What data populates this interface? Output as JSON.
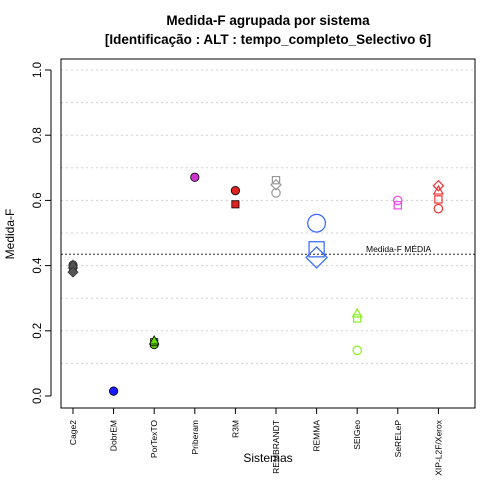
{
  "chart_data": {
    "type": "scatter",
    "title": "Medida-F agrupada por sistema",
    "subtitle": "[Identificação : ALT : tempo_completo_Selectivo 6]",
    "xlabel": "Sistemas",
    "ylabel": "Medida-F",
    "ylim": [
      0.0,
      1.0
    ],
    "yticks": [
      "0.0",
      "0.2",
      "0.4",
      "0.6",
      "0.8",
      "1.0"
    ],
    "grid": true,
    "categories": [
      "Cage2",
      "DobrEM",
      "PorTexTO",
      "Priberam",
      "R3M",
      "REMBRANDT",
      "REMMA",
      "SEIGeo",
      "SeRELeP",
      "XIP-L2F/Xerox"
    ],
    "reference_line": {
      "label": "Medida-F MÉDIA",
      "value": 0.435
    },
    "series": [
      {
        "category": "Cage2",
        "color": "#555555",
        "points": [
          {
            "y": 0.402,
            "marker": "circle-filled"
          },
          {
            "y": 0.395,
            "marker": "square-filled"
          },
          {
            "y": 0.403,
            "marker": "triangle-filled"
          },
          {
            "y": 0.38,
            "marker": "diamond-filled"
          }
        ]
      },
      {
        "category": "DobrEM",
        "color": "#1a1aff",
        "points": [
          {
            "y": 0.015,
            "marker": "circle-filled"
          }
        ]
      },
      {
        "category": "PorTexTO",
        "color": "#66dd00",
        "points": [
          {
            "y": 0.158,
            "marker": "circle-filled"
          },
          {
            "y": 0.165,
            "marker": "square-filled"
          },
          {
            "y": 0.17,
            "marker": "triangle-filled"
          }
        ]
      },
      {
        "category": "Priberam",
        "color": "#cc33cc",
        "points": [
          {
            "y": 0.671,
            "marker": "circle-filled"
          }
        ]
      },
      {
        "category": "R3M",
        "color": "#dd2222",
        "points": [
          {
            "y": 0.63,
            "marker": "circle-filled"
          },
          {
            "y": 0.588,
            "marker": "square-filled"
          }
        ]
      },
      {
        "category": "REMBRANDT",
        "color": "#999999",
        "points": [
          {
            "y": 0.623,
            "marker": "circle-open"
          },
          {
            "y": 0.662,
            "marker": "square-open"
          },
          {
            "y": 0.648,
            "marker": "diamond-open"
          }
        ]
      },
      {
        "category": "REMMA",
        "color": "#3366ff",
        "points": [
          {
            "y": 0.53,
            "marker": "circle-open-large"
          },
          {
            "y": 0.45,
            "marker": "square-open-large"
          },
          {
            "y": 0.425,
            "marker": "diamond-open-large"
          }
        ]
      },
      {
        "category": "SEIGeo",
        "color": "#88ee22",
        "points": [
          {
            "y": 0.14,
            "marker": "circle-open"
          },
          {
            "y": 0.238,
            "marker": "square-open"
          },
          {
            "y": 0.253,
            "marker": "triangle-open"
          }
        ]
      },
      {
        "category": "SeRELeP",
        "color": "#ee44ee",
        "points": [
          {
            "y": 0.6,
            "marker": "circle-open"
          },
          {
            "y": 0.585,
            "marker": "square-open"
          }
        ]
      },
      {
        "category": "XIP-L2F/Xerox",
        "color": "#ee3333",
        "points": [
          {
            "y": 0.575,
            "marker": "circle-open"
          },
          {
            "y": 0.603,
            "marker": "square-open"
          },
          {
            "y": 0.63,
            "marker": "triangle-open"
          },
          {
            "y": 0.645,
            "marker": "diamond-open"
          }
        ]
      }
    ]
  }
}
